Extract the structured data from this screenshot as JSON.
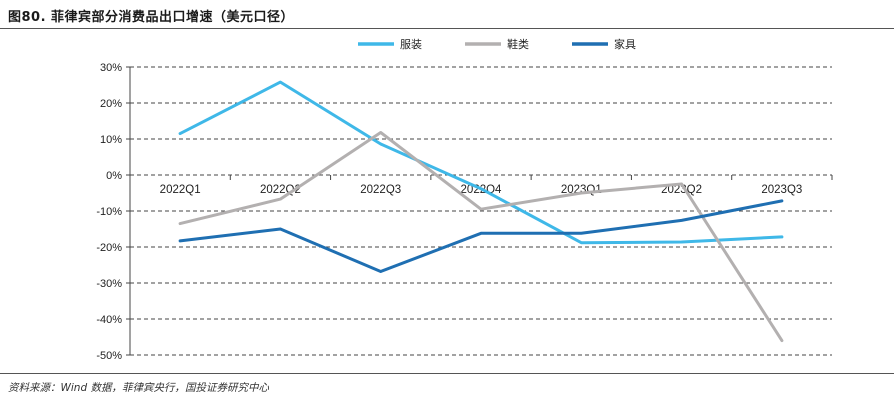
{
  "figure": {
    "title": "图80. 菲律宾部分消费品出口增速（美元口径）",
    "source": "资料来源：Wind 数据，菲律宾央行，国投证券研究中心"
  },
  "chart_data": {
    "type": "line",
    "title": "",
    "xlabel": "",
    "ylabel": "",
    "categories": [
      "2022Q1",
      "2022Q2",
      "2022Q3",
      "2022Q4",
      "2023Q1",
      "2023Q2",
      "2023Q3"
    ],
    "y_ticks": [
      "30%",
      "20%",
      "10%",
      "0%",
      "-10%",
      "-20%",
      "-30%",
      "-40%",
      "-50%"
    ],
    "ylim": [
      -50,
      30
    ],
    "y_unit": "%",
    "grid": "horizontal dashed",
    "legend_position": "top",
    "series": [
      {
        "name": "服装",
        "color": "#3fb8e8",
        "values": [
          11.5,
          25.8,
          8.6,
          -3.8,
          -18.8,
          -18.6,
          -17.2
        ]
      },
      {
        "name": "鞋类",
        "color": "#b3b0b0",
        "values": [
          -13.5,
          -6.7,
          11.8,
          -9.5,
          -5.0,
          -2.5,
          -46.0
        ]
      },
      {
        "name": "家具",
        "color": "#1f6fb2",
        "values": [
          -18.3,
          -15.0,
          -26.8,
          -16.2,
          -16.2,
          -12.6,
          -7.2
        ]
      }
    ]
  }
}
